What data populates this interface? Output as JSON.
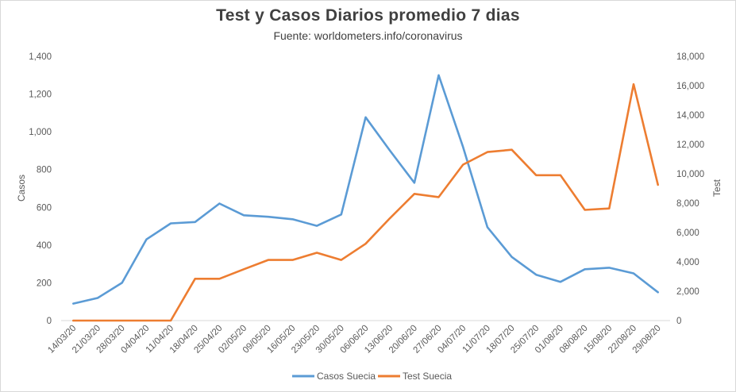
{
  "chart_data": {
    "type": "line",
    "title": "Test y Casos Diarios promedio 7 dias",
    "subtitle": "Fuente: worldometers.info/coronavirus",
    "categories": [
      "14/03/20",
      "21/03/20",
      "28/03/20",
      "04/04/20",
      "11/04/20",
      "18/04/20",
      "25/04/20",
      "02/05/20",
      "09/05/20",
      "16/05/20",
      "23/05/20",
      "30/05/20",
      "06/06/20",
      "13/06/20",
      "20/06/20",
      "27/06/20",
      "04/07/20",
      "11/07/20",
      "18/07/20",
      "25/07/20",
      "01/08/20",
      "08/08/20",
      "15/08/20",
      "22/08/20",
      "29/08/20"
    ],
    "series": [
      {
        "name": "Casos Suecia",
        "axis": "left",
        "color": "#5b9bd5",
        "values": [
          90,
          120,
          200,
          430,
          515,
          522,
          620,
          558,
          550,
          537,
          502,
          562,
          1077,
          900,
          730,
          1300,
          920,
          495,
          337,
          243,
          205,
          272,
          280,
          250,
          150
        ]
      },
      {
        "name": "Test Suecia",
        "axis": "right",
        "color": "#ed7d31",
        "values": [
          0,
          0,
          0,
          0,
          0,
          2850,
          2850,
          3500,
          4130,
          4130,
          4620,
          4130,
          5230,
          6980,
          8630,
          8410,
          10620,
          11480,
          11640,
          9900,
          9900,
          7540,
          7640,
          16100,
          9250
        ]
      }
    ],
    "y_left": {
      "label": "Casos",
      "ylim": [
        0,
        1400
      ],
      "ticks": [
        0,
        200,
        400,
        600,
        800,
        1000,
        1200,
        1400
      ],
      "tick_labels": [
        "0",
        "200",
        "400",
        "600",
        "800",
        "1,000",
        "1,200",
        "1,400"
      ]
    },
    "y_right": {
      "label": "Test",
      "ylim": [
        0,
        18000
      ],
      "ticks": [
        0,
        2000,
        4000,
        6000,
        8000,
        10000,
        12000,
        14000,
        16000,
        18000
      ],
      "tick_labels": [
        "0",
        "2,000",
        "4,000",
        "6,000",
        "8,000",
        "10,000",
        "12,000",
        "14,000",
        "16,000",
        "18,000"
      ]
    },
    "grid": false,
    "legend_position": "bottom"
  }
}
